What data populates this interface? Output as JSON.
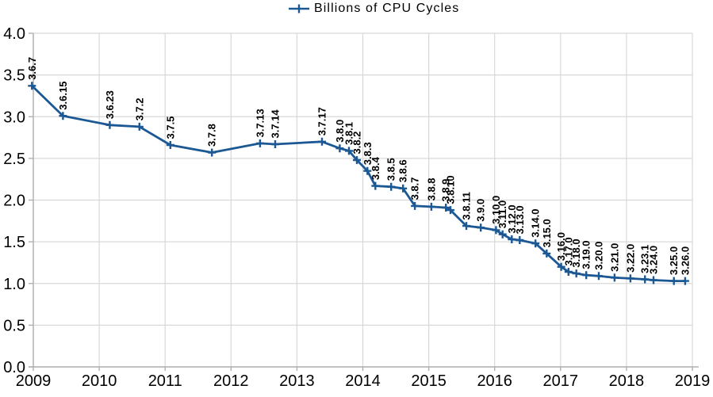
{
  "legend": {
    "label": "Billions of CPU Cycles"
  },
  "colors": {
    "series": "#1b5894",
    "grid": "#d8d8d8",
    "axis": "#b0b0b0",
    "text": "#000000",
    "background": "#ffffff"
  },
  "chart_data": {
    "type": "line",
    "title": "",
    "xlabel": "",
    "ylabel": "",
    "legend_position": "top",
    "legend_entries": [
      "Billions of CPU Cycles"
    ],
    "grid": true,
    "marker": "plus",
    "xlim": [
      2009,
      2019
    ],
    "ylim": [
      0.0,
      4.0
    ],
    "x_ticks": [
      2009,
      2010,
      2011,
      2012,
      2013,
      2014,
      2015,
      2016,
      2017,
      2018,
      2019
    ],
    "y_ticks": [
      0.0,
      0.5,
      1.0,
      1.5,
      2.0,
      2.5,
      3.0,
      3.5,
      4.0
    ],
    "series": [
      {
        "name": "Billions of CPU Cycles",
        "points": [
          {
            "label": "3.6.7",
            "x": 2008.98,
            "y": 3.37
          },
          {
            "label": "3.6.15",
            "x": 2009.45,
            "y": 3.01
          },
          {
            "label": "3.6.23",
            "x": 2010.16,
            "y": 2.9
          },
          {
            "label": "3.7.2",
            "x": 2010.61,
            "y": 2.88
          },
          {
            "label": "3.7.5",
            "x": 2011.08,
            "y": 2.66
          },
          {
            "label": "3.7.8",
            "x": 2011.71,
            "y": 2.57
          },
          {
            "label": "3.7.13",
            "x": 2012.44,
            "y": 2.68
          },
          {
            "label": "3.7.14",
            "x": 2012.67,
            "y": 2.67
          },
          {
            "label": "3.7.17",
            "x": 2013.38,
            "y": 2.7
          },
          {
            "label": "3.8.0",
            "x": 2013.65,
            "y": 2.62
          },
          {
            "label": "3.8.1",
            "x": 2013.79,
            "y": 2.59
          },
          {
            "label": "3.8.2",
            "x": 2013.91,
            "y": 2.48
          },
          {
            "label": "3.8.3",
            "x": 2014.07,
            "y": 2.35
          },
          {
            "label": "3.8.4",
            "x": 2014.19,
            "y": 2.17
          },
          {
            "label": "3.8.5",
            "x": 2014.43,
            "y": 2.16
          },
          {
            "label": "3.8.6",
            "x": 2014.61,
            "y": 2.14
          },
          {
            "label": "3.8.7",
            "x": 2014.79,
            "y": 1.93
          },
          {
            "label": "3.8.8",
            "x": 2015.04,
            "y": 1.92
          },
          {
            "label": "3.8.9",
            "x": 2015.26,
            "y": 1.91
          },
          {
            "label": "3.8.10",
            "x": 2015.33,
            "y": 1.88
          },
          {
            "label": "3.8.11",
            "x": 2015.57,
            "y": 1.69
          },
          {
            "label": "3.9.0",
            "x": 2015.79,
            "y": 1.67
          },
          {
            "label": "3.10.0",
            "x": 2016.02,
            "y": 1.64
          },
          {
            "label": "3.11.0",
            "x": 2016.12,
            "y": 1.59
          },
          {
            "label": "3.12.0",
            "x": 2016.26,
            "y": 1.53
          },
          {
            "label": "3.13.0",
            "x": 2016.38,
            "y": 1.52
          },
          {
            "label": "3.14.0",
            "x": 2016.62,
            "y": 1.48
          },
          {
            "label": "3.15.0",
            "x": 2016.79,
            "y": 1.36
          },
          {
            "label": "3.16.0",
            "x": 2017.01,
            "y": 1.2
          },
          {
            "label": "3.17.0",
            "x": 2017.12,
            "y": 1.14
          },
          {
            "label": "3.18.0",
            "x": 2017.24,
            "y": 1.12
          },
          {
            "label": "3.19.0",
            "x": 2017.39,
            "y": 1.1
          },
          {
            "label": "3.20.0",
            "x": 2017.58,
            "y": 1.09
          },
          {
            "label": "3.21.0",
            "x": 2017.82,
            "y": 1.07
          },
          {
            "label": "3.22.0",
            "x": 2018.06,
            "y": 1.06
          },
          {
            "label": "3.23.1",
            "x": 2018.28,
            "y": 1.05
          },
          {
            "label": "3.24.0",
            "x": 2018.41,
            "y": 1.04
          },
          {
            "label": "3.25.0",
            "x": 2018.72,
            "y": 1.03
          },
          {
            "label": "3.26.0",
            "x": 2018.89,
            "y": 1.03
          }
        ]
      }
    ]
  }
}
